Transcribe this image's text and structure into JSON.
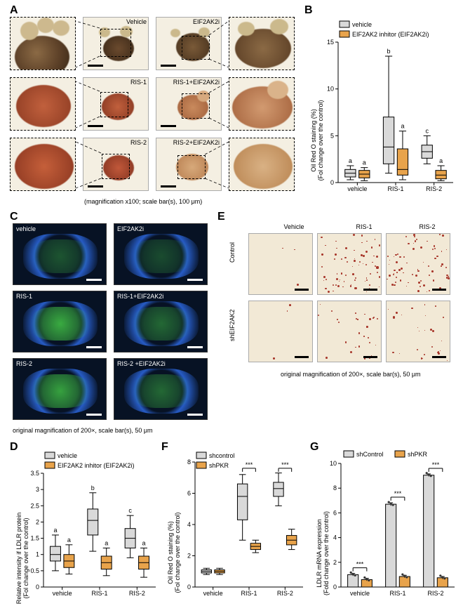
{
  "colors": {
    "vehicle_fill": "#d9d9d9",
    "inhibitor_fill": "#e8a34b",
    "sh_control_fill": "#d9d9d9",
    "sh_pkr_fill": "#e8a34b",
    "axis": "#000000",
    "bg": "#ffffff",
    "organoid_pale": "#d8c9a8",
    "organoid_red": "#b55a3c",
    "organoid_dark": "#6b4a36",
    "fluor_blue": "#2a63d6",
    "fluor_green": "#46d148"
  },
  "panelA": {
    "caption": "(magnification x100; scale bar(s), 100 μm)",
    "cells": [
      [
        "Vehicle",
        "EIF2AK2i"
      ],
      [
        "RIS-1",
        "RIS-1+EIF2AK2i"
      ],
      [
        "RIS-2",
        "RIS-2+EIF2AK2i"
      ]
    ]
  },
  "panelB": {
    "ytitle1": "Oil Red O staining (%)",
    "ytitle2": "(Fol change over the control)",
    "ylim": [
      0,
      15
    ],
    "yticks": [
      0,
      5,
      10,
      15
    ],
    "legend": [
      {
        "label": "vehicle",
        "fill": "#d9d9d9"
      },
      {
        "label": "EIF2AK2 inhitor (EIF2AK2i)",
        "fill": "#e8a34b"
      }
    ],
    "groups": [
      "vehicle",
      "RIS-1",
      "RIS-2"
    ],
    "boxes": [
      {
        "group": 0,
        "series": 0,
        "q1": 0.6,
        "med": 1.0,
        "q3": 1.4,
        "lo": 0.3,
        "hi": 1.8,
        "letter": "a"
      },
      {
        "group": 0,
        "series": 1,
        "q1": 0.5,
        "med": 0.9,
        "q3": 1.3,
        "lo": 0.2,
        "hi": 1.6,
        "letter": "a"
      },
      {
        "group": 1,
        "series": 0,
        "q1": 2.0,
        "med": 3.8,
        "q3": 7.0,
        "lo": 1.0,
        "hi": 13.5,
        "letter": "b"
      },
      {
        "group": 1,
        "series": 1,
        "q1": 0.8,
        "med": 1.4,
        "q3": 3.6,
        "lo": 0.3,
        "hi": 5.5,
        "letter": "a"
      },
      {
        "group": 2,
        "series": 0,
        "q1": 2.6,
        "med": 3.3,
        "q3": 4.0,
        "lo": 2.0,
        "hi": 5.0,
        "letter": "c"
      },
      {
        "group": 2,
        "series": 1,
        "q1": 0.4,
        "med": 0.8,
        "q3": 1.3,
        "lo": 0.2,
        "hi": 1.8,
        "letter": "a"
      }
    ]
  },
  "panelC": {
    "caption": "original magnification of 200×, scale bar(s), 50 μm",
    "labels": [
      "vehicle",
      "EIF2AK2i",
      "RIS-1",
      "RIS-1+EIF2AK2i",
      "RIS-2",
      "RIS-2 +EIF2AK2i"
    ]
  },
  "panelD": {
    "ytitle1": "Relative intensity if LDLR protein",
    "ytitle2": "(Fol change over the control)",
    "ylim": [
      0.0,
      3.5
    ],
    "yticks": [
      0.0,
      0.5,
      1.0,
      1.5,
      2.0,
      2.5,
      3.0,
      3.5
    ],
    "legend": [
      {
        "label": "vehicle",
        "fill": "#d9d9d9"
      },
      {
        "label": "EIF2AK2 inhitor (EIF2AK2i)",
        "fill": "#e8a34b"
      }
    ],
    "groups": [
      "vehicle",
      "RIS-1",
      "RIS-2"
    ],
    "boxes": [
      {
        "group": 0,
        "series": 0,
        "q1": 0.8,
        "med": 1.0,
        "q3": 1.25,
        "lo": 0.5,
        "hi": 1.6,
        "letter": "a"
      },
      {
        "group": 0,
        "series": 1,
        "q1": 0.6,
        "med": 0.8,
        "q3": 1.0,
        "lo": 0.4,
        "hi": 1.3,
        "letter": "a"
      },
      {
        "group": 1,
        "series": 0,
        "q1": 1.6,
        "med": 2.05,
        "q3": 2.4,
        "lo": 1.1,
        "hi": 2.9,
        "letter": "b"
      },
      {
        "group": 1,
        "series": 1,
        "q1": 0.55,
        "med": 0.75,
        "q3": 0.95,
        "lo": 0.35,
        "hi": 1.2,
        "letter": "a"
      },
      {
        "group": 2,
        "series": 0,
        "q1": 1.2,
        "med": 1.5,
        "q3": 1.8,
        "lo": 0.9,
        "hi": 2.2,
        "letter": "c"
      },
      {
        "group": 2,
        "series": 1,
        "q1": 0.55,
        "med": 0.75,
        "q3": 0.95,
        "lo": 0.3,
        "hi": 1.2,
        "letter": "a"
      }
    ]
  },
  "panelE": {
    "caption": "original magnification of 200×, scale bar(s), 50 μm",
    "col_labels": [
      "Vehicle",
      "RIS-1",
      "RIS-2"
    ],
    "row_labels": [
      "Control",
      "shEIF2AK2"
    ]
  },
  "panelF": {
    "ytitle1": "Oil Red O staining (%)",
    "ytitle2": "(Fol change over the control)",
    "ylim": [
      0,
      8
    ],
    "yticks": [
      0,
      2,
      4,
      6,
      8
    ],
    "legend": [
      {
        "label": "shcontrol",
        "fill": "#d9d9d9"
      },
      {
        "label": "shPKR",
        "fill": "#e8a34b"
      }
    ],
    "groups": [
      "vehicle",
      "RIS-1",
      "RIS-2"
    ],
    "boxes": [
      {
        "group": 0,
        "series": 0,
        "q1": 0.9,
        "med": 1.0,
        "q3": 1.1,
        "lo": 0.8,
        "hi": 1.2,
        "sig": ""
      },
      {
        "group": 0,
        "series": 1,
        "q1": 0.9,
        "med": 1.0,
        "q3": 1.1,
        "lo": 0.8,
        "hi": 1.2,
        "sig": ""
      },
      {
        "group": 1,
        "series": 0,
        "q1": 4.3,
        "med": 5.8,
        "q3": 6.6,
        "lo": 3.0,
        "hi": 7.2,
        "sig": "***"
      },
      {
        "group": 1,
        "series": 1,
        "q1": 2.4,
        "med": 2.6,
        "q3": 2.8,
        "lo": 2.2,
        "hi": 3.0,
        "sig": ""
      },
      {
        "group": 2,
        "series": 0,
        "q1": 5.8,
        "med": 6.3,
        "q3": 6.7,
        "lo": 5.2,
        "hi": 7.3,
        "sig": "***"
      },
      {
        "group": 2,
        "series": 1,
        "q1": 2.7,
        "med": 3.0,
        "q3": 3.3,
        "lo": 2.4,
        "hi": 3.7,
        "sig": ""
      }
    ]
  },
  "panelG": {
    "ytitle1": "LDLR mRNA expression",
    "ytitle2": "(Fold change over the control)",
    "ylim": [
      0,
      10
    ],
    "yticks": [
      0,
      2,
      4,
      6,
      8,
      10
    ],
    "legend": [
      {
        "label": "shControl",
        "fill": "#d9d9d9"
      },
      {
        "label": "shPKR",
        "fill": "#e8a34b"
      }
    ],
    "groups": [
      "vehicle",
      "RIS-1",
      "RIS-2"
    ],
    "bars": [
      {
        "group": 0,
        "series": 0,
        "mean": 1.0,
        "sem": 0.1,
        "sig": "***"
      },
      {
        "group": 0,
        "series": 1,
        "mean": 0.6,
        "sem": 0.1,
        "sig": ""
      },
      {
        "group": 1,
        "series": 0,
        "mean": 6.7,
        "sem": 0.12,
        "sig": "***"
      },
      {
        "group": 1,
        "series": 1,
        "mean": 0.85,
        "sem": 0.1,
        "sig": ""
      },
      {
        "group": 2,
        "series": 0,
        "mean": 9.05,
        "sem": 0.1,
        "sig": "***"
      },
      {
        "group": 2,
        "series": 1,
        "mean": 0.75,
        "sem": 0.1,
        "sig": ""
      }
    ]
  }
}
